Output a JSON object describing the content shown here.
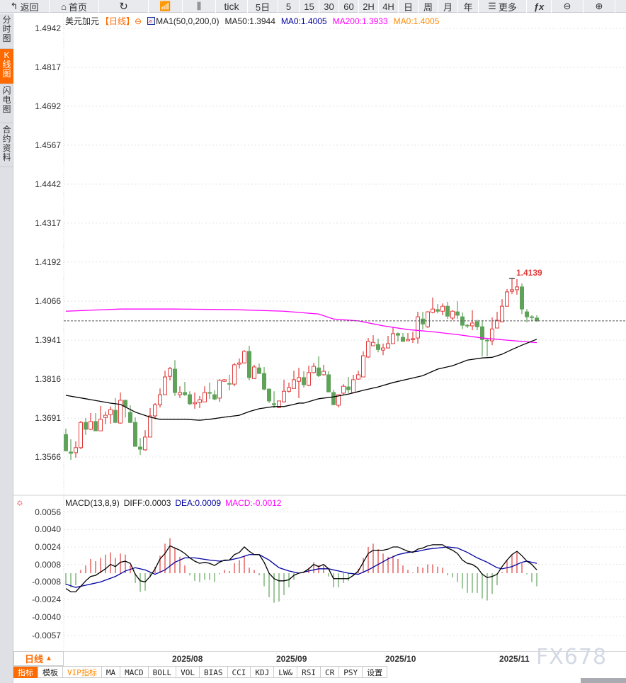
{
  "toolbar": {
    "back": "返回",
    "home": "首页",
    "tick": "tick",
    "five_day": "5日",
    "periods": [
      "5",
      "15",
      "30",
      "60",
      "2H",
      "4H",
      "日",
      "周",
      "月",
      "年"
    ],
    "more": "更多",
    "icons": {
      "back": "back-arrow-icon",
      "home": "home-icon",
      "refresh": "refresh-icon",
      "indicator": "bar-chart-icon",
      "candle": "candlestick-icon",
      "more": "menu-icon",
      "fx": "formula-icon",
      "zoom_out": "zoom-out-icon",
      "zoom_in": "zoom-in-icon"
    }
  },
  "sidebar": {
    "items": [
      {
        "label": "分时图"
      },
      {
        "label": "K线图",
        "active": true
      },
      {
        "label": "闪电图"
      },
      {
        "label": "合约资料"
      }
    ]
  },
  "legend": {
    "symbol": "美元加元",
    "period": "【日线】",
    "ma_set": "MA1(50,0,200,0)",
    "ma50": "MA50:1.3944",
    "ma0_a": "MA0:1.4005",
    "ma200": "MA200:1.3933",
    "ma0_b": "MA0:1.4005"
  },
  "macd_legend": {
    "title": "MACD(13,8,9)",
    "diff": "DIFF:0.0003",
    "dea": "DEA:0.0009",
    "macd": "MACD:-0.0012"
  },
  "colors": {
    "up": "#e03c3c",
    "down": "#5fa35a",
    "ma50": "#000000",
    "ma200": "#ff00ff",
    "dea": "#0000a0",
    "accent": "#ff6a00",
    "last_price": "#1e6fe0"
  },
  "bottom": {
    "period": "日线",
    "period_arrow": "▲",
    "tabs": [
      "指标",
      "模板",
      "VIP指标",
      "MA",
      "MACD",
      "BOLL",
      "VOL",
      "BIAS",
      "CCI",
      "KDJ",
      "LW&",
      "RSI",
      "CR",
      "PSY",
      "设置"
    ]
  },
  "watermark": "FX678",
  "chart_data": [
    {
      "type": "candlestick",
      "yticks": [
        "1.4942",
        "1.4817",
        "1.4692",
        "1.4567",
        "1.4442",
        "1.4317",
        "1.4192",
        "1.4066",
        "1.3941",
        "1.3816",
        "1.3691",
        "1.3566"
      ],
      "xticks": [
        "2025/08",
        "2025/09",
        "2025/10",
        "2025/11"
      ],
      "xtick_index": [
        22,
        43,
        65,
        88
      ],
      "high_label": "1.4139",
      "high_index": 90,
      "last_price": 1.4003,
      "ohlc": [
        [
          1.3638,
          1.3657,
          1.3584,
          1.3586
        ],
        [
          1.3582,
          1.3623,
          1.3557,
          1.3578
        ],
        [
          1.358,
          1.3616,
          1.3564,
          1.3596
        ],
        [
          1.3596,
          1.3682,
          1.3591,
          1.3677
        ],
        [
          1.3677,
          1.3691,
          1.3637,
          1.3655
        ],
        [
          1.3655,
          1.3707,
          1.3652,
          1.368
        ],
        [
          1.368,
          1.3707,
          1.365,
          1.365
        ],
        [
          1.365,
          1.373,
          1.365,
          1.3687
        ],
        [
          1.3693,
          1.3712,
          1.3671,
          1.37
        ],
        [
          1.3702,
          1.3728,
          1.3673,
          1.3718
        ],
        [
          1.3716,
          1.3755,
          1.3677,
          1.3677
        ],
        [
          1.3675,
          1.3773,
          1.3673,
          1.3748
        ],
        [
          1.3748,
          1.375,
          1.3693,
          1.3728
        ],
        [
          1.3709,
          1.3732,
          1.3675,
          1.3677
        ],
        [
          1.3677,
          1.3693,
          1.36,
          1.36
        ],
        [
          1.3598,
          1.3627,
          1.3573,
          1.3591
        ],
        [
          1.3589,
          1.3652,
          1.3586,
          1.363
        ],
        [
          1.363,
          1.3723,
          1.363,
          1.3698
        ],
        [
          1.3698,
          1.3739,
          1.3687,
          1.3734
        ],
        [
          1.3734,
          1.3786,
          1.3725,
          1.3766
        ],
        [
          1.3766,
          1.3843,
          1.3766,
          1.3823
        ],
        [
          1.3825,
          1.3855,
          1.3812,
          1.385
        ],
        [
          1.3848,
          1.3877,
          1.3762,
          1.3773
        ],
        [
          1.3766,
          1.3793,
          1.3755,
          1.3773
        ],
        [
          1.3773,
          1.3807,
          1.3762,
          1.3766
        ],
        [
          1.3766,
          1.3777,
          1.3732,
          1.3737
        ],
        [
          1.3737,
          1.3773,
          1.3721,
          1.3741
        ],
        [
          1.3741,
          1.3762,
          1.3723,
          1.375
        ],
        [
          1.3743,
          1.3793,
          1.3743,
          1.3773
        ],
        [
          1.3773,
          1.3805,
          1.3752,
          1.3771
        ],
        [
          1.3766,
          1.378,
          1.3748,
          1.3752
        ],
        [
          1.3755,
          1.3816,
          1.3743,
          1.3812
        ],
        [
          1.3809,
          1.3816,
          1.3807,
          1.3814
        ],
        [
          1.3802,
          1.383,
          1.378,
          1.38
        ],
        [
          1.38,
          1.3868,
          1.3793,
          1.3862
        ],
        [
          1.3864,
          1.3882,
          1.385,
          1.3868
        ],
        [
          1.3868,
          1.3909,
          1.3866,
          1.3905
        ],
        [
          1.3905,
          1.3923,
          1.3812,
          1.3821
        ],
        [
          1.3818,
          1.3862,
          1.3816,
          1.3855
        ],
        [
          1.3852,
          1.3866,
          1.3834,
          1.3834
        ],
        [
          1.3834,
          1.3855,
          1.378,
          1.3784
        ],
        [
          1.3784,
          1.3786,
          1.3739,
          1.3746
        ],
        [
          1.3737,
          1.3777,
          1.3723,
          1.3734
        ],
        [
          1.3725,
          1.3746,
          1.3723,
          1.3746
        ],
        [
          1.3743,
          1.3814,
          1.3741,
          1.3777
        ],
        [
          1.3777,
          1.3805,
          1.3773,
          1.3789
        ],
        [
          1.3786,
          1.3843,
          1.3786,
          1.3814
        ],
        [
          1.3809,
          1.3852,
          1.3755,
          1.3821
        ],
        [
          1.3821,
          1.3841,
          1.3789,
          1.3798
        ],
        [
          1.3796,
          1.3859,
          1.3793,
          1.3837
        ],
        [
          1.3837,
          1.3868,
          1.3834,
          1.3857
        ],
        [
          1.3852,
          1.3889,
          1.3823,
          1.3827
        ],
        [
          1.383,
          1.3862,
          1.3827,
          1.3841
        ],
        [
          1.383,
          1.3841,
          1.3775,
          1.3775
        ],
        [
          1.3773,
          1.3782,
          1.3732,
          1.3734
        ],
        [
          1.3732,
          1.3766,
          1.3725,
          1.3766
        ],
        [
          1.3771,
          1.38,
          1.3764,
          1.3793
        ],
        [
          1.3791,
          1.3823,
          1.3771,
          1.3782
        ],
        [
          1.3773,
          1.383,
          1.3773,
          1.3814
        ],
        [
          1.3816,
          1.3843,
          1.3814,
          1.383
        ],
        [
          1.3823,
          1.3905,
          1.3823,
          1.3891
        ],
        [
          1.3887,
          1.3948,
          1.3884,
          1.3937
        ],
        [
          1.3923,
          1.3957,
          1.3923,
          1.3934
        ],
        [
          1.3927,
          1.3946,
          1.3902,
          1.3911
        ],
        [
          1.3909,
          1.393,
          1.3893,
          1.3916
        ],
        [
          1.3916,
          1.3955,
          1.3914,
          1.393
        ],
        [
          1.393,
          1.3984,
          1.393,
          1.3962
        ],
        [
          1.3962,
          1.3966,
          1.3937,
          1.3957
        ],
        [
          1.395,
          1.3964,
          1.3937,
          1.3937
        ],
        [
          1.3939,
          1.3964,
          1.3939,
          1.3943
        ],
        [
          1.3943,
          1.3968,
          1.3932,
          1.3946
        ],
        [
          1.3948,
          1.4032,
          1.393,
          1.4016
        ],
        [
          1.4009,
          1.4032,
          1.3975,
          1.3993
        ],
        [
          1.3984,
          1.4034,
          1.398,
          1.4032
        ],
        [
          1.403,
          1.4078,
          1.4027,
          1.4041
        ],
        [
          1.4039,
          1.4057,
          1.4027,
          1.4034
        ],
        [
          1.4034,
          1.4059,
          1.4021,
          1.405
        ],
        [
          1.405,
          1.4064,
          1.4009,
          1.4018
        ],
        [
          1.4012,
          1.4037,
          1.4005,
          1.4034
        ],
        [
          1.4032,
          1.4066,
          1.4009,
          1.4021
        ],
        [
          1.4016,
          1.403,
          1.3977,
          1.3989
        ],
        [
          1.3989,
          1.3993,
          1.398,
          1.3987
        ],
        [
          1.3987,
          1.4037,
          1.3973,
          1.3996
        ],
        [
          1.4,
          1.4007,
          1.3973,
          1.3984
        ],
        [
          1.3984,
          1.4005,
          1.3889,
          1.3943
        ],
        [
          1.3941,
          1.3948,
          1.3889,
          1.3939
        ],
        [
          1.3939,
          1.4014,
          1.3925,
          1.3977
        ],
        [
          1.398,
          1.4032,
          1.398,
          1.4005
        ],
        [
          1.4,
          1.4073,
          1.4,
          1.405
        ],
        [
          1.405,
          1.4105,
          1.405,
          1.4096
        ],
        [
          1.4098,
          1.4139,
          1.4089,
          1.4103
        ],
        [
          1.4103,
          1.4137,
          1.4087,
          1.4112
        ],
        [
          1.4112,
          1.4123,
          1.4025,
          1.4041
        ],
        [
          1.4032,
          1.4041,
          1.3998,
          1.4016
        ],
        [
          1.4016,
          1.4021,
          1.4003,
          1.4014
        ],
        [
          1.4012,
          1.4021,
          1.4,
          1.4003
        ]
      ],
      "ma50": [
        [
          0,
          1.3764
        ],
        [
          4,
          1.3753
        ],
        [
          9,
          1.3739
        ],
        [
          11,
          1.3735
        ],
        [
          14,
          1.371
        ],
        [
          17,
          1.3694
        ],
        [
          19,
          1.3687
        ],
        [
          24,
          1.3687
        ],
        [
          27,
          1.3684
        ],
        [
          29,
          1.3687
        ],
        [
          32,
          1.3694
        ],
        [
          35,
          1.37
        ],
        [
          37,
          1.3712
        ],
        [
          39,
          1.3721
        ],
        [
          42,
          1.3728
        ],
        [
          44,
          1.3728
        ],
        [
          46,
          1.3735
        ],
        [
          47,
          1.3739
        ],
        [
          48,
          1.3739
        ],
        [
          51,
          1.3753
        ],
        [
          54,
          1.3759
        ],
        [
          57,
          1.3768
        ],
        [
          60,
          1.378
        ],
        [
          63,
          1.3791
        ],
        [
          66,
          1.3805
        ],
        [
          69,
          1.3816
        ],
        [
          72,
          1.3827
        ],
        [
          75,
          1.3848
        ],
        [
          78,
          1.3859
        ],
        [
          81,
          1.3877
        ],
        [
          84,
          1.3884
        ],
        [
          86,
          1.3886
        ],
        [
          88,
          1.3896
        ],
        [
          90,
          1.3911
        ],
        [
          92,
          1.3925
        ],
        [
          95,
          1.3944
        ]
      ],
      "ma200": [
        [
          0,
          1.4034
        ],
        [
          11,
          1.4041
        ],
        [
          22,
          1.4041
        ],
        [
          34,
          1.4039
        ],
        [
          44,
          1.4034
        ],
        [
          51,
          1.4025
        ],
        [
          54,
          1.4009
        ],
        [
          59,
          1.4003
        ],
        [
          64,
          1.3987
        ],
        [
          69,
          1.3975
        ],
        [
          74,
          1.3968
        ],
        [
          79,
          1.3959
        ],
        [
          84,
          1.3948
        ],
        [
          89,
          1.3941
        ],
        [
          95,
          1.3933
        ]
      ]
    },
    {
      "type": "macd",
      "yticks": [
        "0.0056",
        "0.0040",
        "0.0024",
        "0.0008",
        "-0.0008",
        "-0.0024",
        "-0.0040",
        "-0.0057"
      ],
      "hist": [
        -0.0011,
        -0.0013,
        -0.0011,
        0.0003,
        0.0007,
        0.0013,
        0.0011,
        0.0014,
        0.0017,
        0.0019,
        0.0014,
        0.0018,
        0.0017,
        0.0007,
        -0.0009,
        -0.0017,
        -0.0016,
        -0.0004,
        0.0006,
        0.0016,
        0.0027,
        0.0032,
        0.0023,
        0.0015,
        0.0007,
        -0.0002,
        -0.0007,
        -0.0008,
        -0.0006,
        -0.0006,
        -0.0008,
        -0.0001,
        0.0003,
        0.0002,
        0.0009,
        0.0012,
        0.0016,
        0.0005,
        0.0003,
        -0.0002,
        -0.0012,
        -0.0022,
        -0.0027,
        -0.0026,
        -0.002,
        -0.0013,
        -0.0006,
        0.0,
        0.0001,
        0.0005,
        0.001,
        0.0007,
        0.0007,
        -0.0003,
        -0.0013,
        -0.0013,
        -0.0009,
        -0.0007,
        -0.0002,
        0.0004,
        0.0014,
        0.0024,
        0.0027,
        0.0022,
        0.0018,
        0.0015,
        0.0016,
        0.0013,
        0.0007,
        0.0003,
        0.0,
        0.0006,
        0.0005,
        0.0008,
        0.0008,
        0.0006,
        0.0005,
        -0.0002,
        -0.0004,
        -0.0008,
        -0.0014,
        -0.0018,
        -0.0018,
        -0.0018,
        -0.0023,
        -0.0025,
        -0.0019,
        -0.0011,
        0.0001,
        0.0012,
        0.0017,
        0.0019,
        0.0009,
        -0.0001,
        -0.0008,
        -0.0012
      ],
      "diff": [
        -0.0014,
        -0.0017,
        -0.0017,
        -0.0012,
        -0.0007,
        -0.0003,
        -0.0002,
        0.0001,
        0.0004,
        0.0008,
        0.0006,
        0.001,
        0.0011,
        0.0009,
        -0.0001,
        -0.0007,
        -0.0008,
        -0.0003,
        0.0004,
        0.0013,
        0.0018,
        0.0025,
        0.0023,
        0.0021,
        0.0018,
        0.0014,
        0.0011,
        0.0009,
        0.001,
        0.0009,
        0.0007,
        0.001,
        0.0012,
        0.0012,
        0.0017,
        0.0019,
        0.0024,
        0.002,
        0.0017,
        0.0017,
        0.001,
        0.0,
        -0.0005,
        -0.0007,
        -0.0007,
        -0.0006,
        -0.0002,
        0.0,
        0.0001,
        0.0004,
        0.0008,
        0.0006,
        0.0008,
        0.0004,
        -0.0005,
        -0.0005,
        -0.0005,
        -0.0005,
        -0.0002,
        0.0002,
        0.001,
        0.0018,
        0.0021,
        0.0021,
        0.0021,
        0.0022,
        0.0024,
        0.0024,
        0.0022,
        0.002,
        0.0019,
        0.0022,
        0.0023,
        0.0025,
        0.0026,
        0.0026,
        0.0026,
        0.0023,
        0.0021,
        0.0018,
        0.0012,
        0.0009,
        0.0008,
        0.0005,
        -0.0001,
        -0.0004,
        -0.0003,
        -0.0001,
        0.0006,
        0.0012,
        0.0017,
        0.002,
        0.0016,
        0.0011,
        0.0008,
        0.0003
      ],
      "dea": [
        [
          0,
          -0.001
        ],
        [
          2,
          -0.0013
        ],
        [
          4,
          -0.0011
        ],
        [
          7,
          -0.0008
        ],
        [
          10,
          -0.0003
        ],
        [
          12,
          0.0002
        ],
        [
          14,
          0.0005
        ],
        [
          16,
          0.0003
        ],
        [
          18,
          -0.0001
        ],
        [
          20,
          0.0003
        ],
        [
          22,
          0.001
        ],
        [
          24,
          0.0014
        ],
        [
          26,
          0.0014
        ],
        [
          29,
          0.0012
        ],
        [
          31,
          0.0011
        ],
        [
          33,
          0.0012
        ],
        [
          35,
          0.0014
        ],
        [
          37,
          0.0017
        ],
        [
          39,
          0.0017
        ],
        [
          41,
          0.0012
        ],
        [
          43,
          0.0005
        ],
        [
          45,
          0.0002
        ],
        [
          47,
          0.0
        ],
        [
          49,
          0.0002
        ],
        [
          51,
          0.0004
        ],
        [
          53,
          0.0004
        ],
        [
          55,
          0.0002
        ],
        [
          57,
          0.0
        ],
        [
          59,
          -0.0001
        ],
        [
          61,
          0.0003
        ],
        [
          63,
          0.0008
        ],
        [
          65,
          0.0013
        ],
        [
          67,
          0.0017
        ],
        [
          69,
          0.0019
        ],
        [
          71,
          0.002
        ],
        [
          73,
          0.0022
        ],
        [
          75,
          0.0023
        ],
        [
          77,
          0.0024
        ],
        [
          79,
          0.0023
        ],
        [
          81,
          0.0019
        ],
        [
          83,
          0.0014
        ],
        [
          85,
          0.001
        ],
        [
          87,
          0.0005
        ],
        [
          88,
          0.0004
        ],
        [
          90,
          0.0006
        ],
        [
          92,
          0.001
        ],
        [
          93,
          0.0011
        ],
        [
          95,
          0.0009
        ]
      ]
    }
  ]
}
